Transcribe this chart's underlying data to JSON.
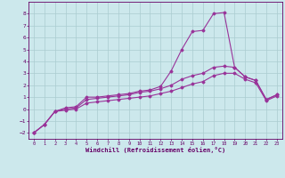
{
  "xlabel": "Windchill (Refroidissement éolien,°C)",
  "background_color": "#cce8ec",
  "grid_color": "#aaccd0",
  "line_color": "#993399",
  "xlim": [
    -0.5,
    23.5
  ],
  "ylim": [
    -2.5,
    9.0
  ],
  "xticks": [
    0,
    1,
    2,
    3,
    4,
    5,
    6,
    7,
    8,
    9,
    10,
    11,
    12,
    13,
    14,
    15,
    16,
    17,
    18,
    19,
    20,
    21,
    22,
    23
  ],
  "yticks": [
    -2,
    -1,
    0,
    1,
    2,
    3,
    4,
    5,
    6,
    7,
    8
  ],
  "curve1_x": [
    0,
    1,
    2,
    3,
    4,
    5,
    6,
    7,
    8,
    9,
    10,
    11,
    12,
    13,
    14,
    15,
    16,
    17,
    18,
    19,
    20,
    21,
    22,
    23
  ],
  "curve1_y": [
    -2.0,
    -1.3,
    -0.2,
    0.1,
    0.2,
    1.0,
    1.0,
    1.1,
    1.2,
    1.3,
    1.5,
    1.6,
    1.9,
    3.2,
    5.0,
    6.5,
    6.6,
    8.0,
    8.1,
    3.5,
    2.7,
    2.4,
    0.8,
    1.2
  ],
  "curve2_x": [
    0,
    1,
    2,
    3,
    4,
    5,
    6,
    7,
    8,
    9,
    10,
    11,
    12,
    13,
    14,
    15,
    16,
    17,
    18,
    19,
    20,
    21,
    22,
    23
  ],
  "curve2_y": [
    -2.0,
    -1.3,
    -0.2,
    0.0,
    0.1,
    0.8,
    0.9,
    1.0,
    1.1,
    1.2,
    1.4,
    1.5,
    1.7,
    2.0,
    2.5,
    2.8,
    3.0,
    3.5,
    3.6,
    3.5,
    2.7,
    2.4,
    0.8,
    1.2
  ],
  "curve3_x": [
    0,
    1,
    2,
    3,
    4,
    5,
    6,
    7,
    8,
    9,
    10,
    11,
    12,
    13,
    14,
    15,
    16,
    17,
    18,
    19,
    20,
    21,
    22,
    23
  ],
  "curve3_y": [
    -2.0,
    -1.3,
    -0.2,
    -0.1,
    0.0,
    0.5,
    0.6,
    0.7,
    0.8,
    0.9,
    1.0,
    1.1,
    1.3,
    1.5,
    1.8,
    2.1,
    2.3,
    2.8,
    3.0,
    3.0,
    2.5,
    2.2,
    0.7,
    1.1
  ]
}
